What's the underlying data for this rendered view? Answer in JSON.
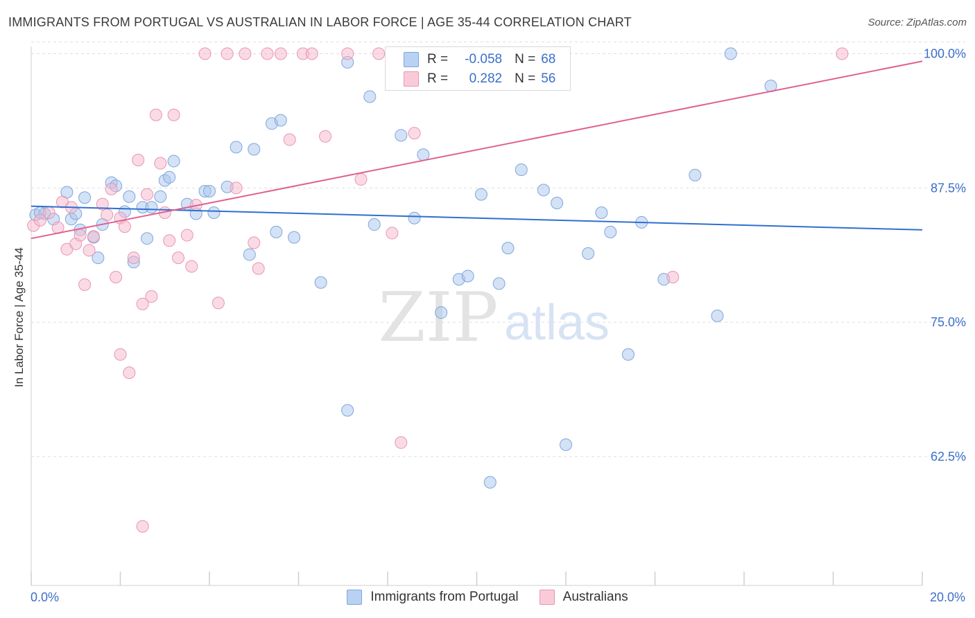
{
  "title": "IMMIGRANTS FROM PORTUGAL VS AUSTRALIAN IN LABOR FORCE | AGE 35-44 CORRELATION CHART",
  "source": "Source: ZipAtlas.com",
  "watermark": {
    "zip": "ZIP",
    "atlas": "atlas"
  },
  "colors": {
    "blue_fill": "#a9c6ee",
    "blue_stroke": "#7ea5dd",
    "blue_line": "#2f6fd0",
    "pink_fill": "#f5b8cb",
    "pink_stroke": "#eb94b1",
    "pink_line": "#e0608f",
    "axis_label": "#3b6ec9",
    "grid": "#dddddd"
  },
  "stats": {
    "blue": {
      "r_label": "R =",
      "r_value": "-0.058",
      "n_label": "N =",
      "n_value": "68"
    },
    "pink": {
      "r_label": "R =",
      "r_value": "0.282",
      "n_label": "N =",
      "n_value": "56"
    }
  },
  "legend": {
    "blue": "Immigrants from Portugal",
    "pink": "Australians"
  },
  "chart_data": {
    "type": "scatter",
    "title": "IMMIGRANTS FROM PORTUGAL VS AUSTRALIAN IN LABOR FORCE | AGE 35-44 CORRELATION CHART",
    "xlabel": "",
    "ylabel": "In Labor Force | Age 35-44",
    "xlim": [
      0,
      20
    ],
    "ylim": [
      50.5,
      101
    ],
    "x_tick_labels": [
      "0.0%",
      "20.0%"
    ],
    "y_ticks": [
      62.5,
      75.0,
      87.5,
      100.0
    ],
    "y_tick_labels": [
      "62.5%",
      "75.0%",
      "87.5%",
      "100.0%"
    ],
    "grid": true,
    "legend_position": "bottom-center",
    "series": [
      {
        "name": "Immigrants from Portugal",
        "color": "blue",
        "trend": {
          "x": [
            0,
            20
          ],
          "y": [
            85.8,
            83.6
          ]
        },
        "points": [
          [
            0.1,
            85.0
          ],
          [
            0.3,
            85.1
          ],
          [
            0.5,
            84.6
          ],
          [
            0.8,
            87.1
          ],
          [
            0.9,
            84.6
          ],
          [
            1.0,
            85.1
          ],
          [
            1.1,
            83.6
          ],
          [
            1.2,
            86.6
          ],
          [
            1.4,
            82.9
          ],
          [
            1.5,
            81.0
          ],
          [
            1.6,
            84.1
          ],
          [
            1.8,
            88.0
          ],
          [
            1.9,
            87.7
          ],
          [
            2.1,
            85.3
          ],
          [
            2.2,
            86.7
          ],
          [
            2.3,
            80.6
          ],
          [
            2.5,
            85.7
          ],
          [
            2.6,
            82.8
          ],
          [
            2.7,
            85.7
          ],
          [
            2.9,
            86.7
          ],
          [
            3.0,
            88.2
          ],
          [
            3.1,
            88.5
          ],
          [
            3.2,
            90.0
          ],
          [
            3.5,
            86.0
          ],
          [
            3.7,
            85.1
          ],
          [
            3.9,
            87.2
          ],
          [
            4.0,
            87.2
          ],
          [
            4.1,
            85.2
          ],
          [
            4.4,
            87.6
          ],
          [
            4.6,
            91.3
          ],
          [
            4.9,
            81.3
          ],
          [
            5.0,
            91.1
          ],
          [
            5.4,
            93.5
          ],
          [
            5.5,
            83.4
          ],
          [
            5.6,
            93.8
          ],
          [
            5.9,
            82.9
          ],
          [
            6.5,
            78.7
          ],
          [
            7.1,
            99.2
          ],
          [
            7.1,
            66.8
          ],
          [
            7.6,
            96.0
          ],
          [
            7.7,
            84.1
          ],
          [
            8.3,
            92.4
          ],
          [
            8.4,
            100.0
          ],
          [
            8.6,
            84.7
          ],
          [
            8.8,
            90.6
          ],
          [
            9.2,
            75.9
          ],
          [
            9.6,
            79.0
          ],
          [
            9.8,
            79.3
          ],
          [
            10.1,
            86.9
          ],
          [
            10.3,
            60.1
          ],
          [
            10.5,
            78.6
          ],
          [
            10.7,
            81.9
          ],
          [
            11.0,
            89.2
          ],
          [
            11.2,
            100.0
          ],
          [
            11.5,
            87.3
          ],
          [
            11.8,
            86.1
          ],
          [
            12.0,
            63.6
          ],
          [
            12.5,
            81.4
          ],
          [
            12.8,
            85.2
          ],
          [
            13.0,
            83.4
          ],
          [
            13.4,
            72.0
          ],
          [
            13.7,
            84.3
          ],
          [
            14.2,
            79.0
          ],
          [
            14.9,
            88.7
          ],
          [
            15.4,
            75.6
          ],
          [
            15.7,
            100.0
          ],
          [
            16.6,
            97.0
          ],
          [
            0.2,
            85.2
          ]
        ]
      },
      {
        "name": "Australians",
        "color": "pink",
        "trend": {
          "x": [
            0,
            20
          ],
          "y": [
            82.8,
            99.3
          ]
        },
        "points": [
          [
            0.05,
            84.0
          ],
          [
            0.2,
            84.5
          ],
          [
            0.4,
            85.2
          ],
          [
            0.6,
            83.8
          ],
          [
            0.7,
            86.2
          ],
          [
            0.8,
            81.8
          ],
          [
            0.9,
            85.7
          ],
          [
            1.0,
            82.3
          ],
          [
            1.1,
            83.1
          ],
          [
            1.2,
            78.5
          ],
          [
            1.3,
            81.7
          ],
          [
            1.4,
            83.0
          ],
          [
            1.6,
            86.0
          ],
          [
            1.7,
            85.0
          ],
          [
            1.8,
            87.4
          ],
          [
            1.9,
            79.2
          ],
          [
            2.0,
            84.7
          ],
          [
            2.0,
            72.0
          ],
          [
            2.1,
            83.9
          ],
          [
            2.2,
            70.3
          ],
          [
            2.3,
            81.0
          ],
          [
            2.4,
            90.1
          ],
          [
            2.5,
            56.0
          ],
          [
            2.5,
            76.7
          ],
          [
            2.6,
            86.9
          ],
          [
            2.7,
            77.4
          ],
          [
            2.8,
            94.3
          ],
          [
            2.9,
            89.8
          ],
          [
            3.0,
            85.2
          ],
          [
            3.1,
            82.6
          ],
          [
            3.2,
            94.3
          ],
          [
            3.3,
            81.0
          ],
          [
            3.5,
            83.1
          ],
          [
            3.6,
            80.2
          ],
          [
            3.7,
            85.9
          ],
          [
            3.9,
            100.0
          ],
          [
            4.2,
            76.8
          ],
          [
            4.4,
            100.0
          ],
          [
            4.6,
            87.5
          ],
          [
            4.8,
            100.0
          ],
          [
            5.0,
            82.4
          ],
          [
            5.1,
            80.0
          ],
          [
            5.3,
            100.0
          ],
          [
            5.6,
            100.0
          ],
          [
            5.8,
            92.0
          ],
          [
            6.1,
            100.0
          ],
          [
            6.3,
            100.0
          ],
          [
            6.6,
            92.3
          ],
          [
            7.1,
            100.0
          ],
          [
            7.4,
            88.3
          ],
          [
            7.8,
            100.0
          ],
          [
            8.1,
            83.3
          ],
          [
            8.3,
            63.8
          ],
          [
            8.6,
            92.6
          ],
          [
            14.4,
            79.2
          ],
          [
            18.2,
            100.0
          ]
        ]
      }
    ]
  }
}
